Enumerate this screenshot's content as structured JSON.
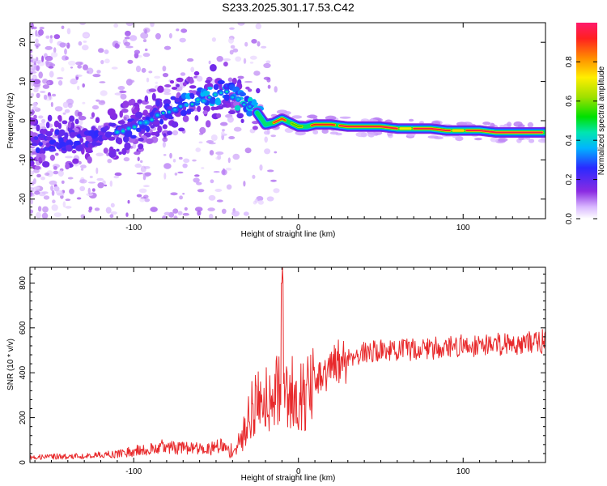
{
  "title": "S233.2025.301.17.53.C42",
  "colors": {
    "snr_line": "#e8292b",
    "axis": "#000000",
    "cband_edge": "#ffffff"
  },
  "chart_data": [
    {
      "type": "heatmap",
      "name": "spectrogram",
      "xlabel": "Height of straight line (km)",
      "ylabel": "Frequency (Hz)",
      "xlim": [
        -163,
        150
      ],
      "ylim": [
        -25,
        25
      ],
      "xticks": [
        -100,
        0,
        100
      ],
      "xtick_labels": [
        "-100",
        "0",
        "100"
      ],
      "yticks": [
        -20,
        -10,
        0,
        10,
        20
      ],
      "ytick_labels": [
        "-20",
        "-10",
        "0",
        "10",
        "20"
      ],
      "ridge": {
        "x": [
          -160,
          -140,
          -120,
          -100,
          -85,
          -70,
          -55,
          -45,
          -40,
          -35,
          -30,
          -25,
          -20,
          -15,
          -10,
          -5,
          0,
          5,
          10,
          20,
          30,
          40,
          50,
          60,
          70,
          80,
          90,
          100,
          110,
          120,
          130,
          140,
          150
        ],
        "y": [
          -6,
          -5,
          -4,
          -2,
          2,
          4,
          6,
          8,
          6,
          5,
          3,
          2,
          -1,
          -0.5,
          0.5,
          -0.5,
          -1.5,
          -1.5,
          -1,
          -1,
          -1.5,
          -1.5,
          -1.5,
          -2,
          -2,
          -2,
          -2.5,
          -2.5,
          -2.5,
          -3,
          -3,
          -3,
          -3
        ]
      },
      "colorbar": {
        "label": "Normalized spectral amplitude",
        "range": [
          0,
          1
        ],
        "ticks": [
          0.0,
          0.2,
          0.4,
          0.6,
          0.8
        ],
        "tick_labels": [
          "0.0",
          "0.2",
          "0.4",
          "0.6",
          "0.8"
        ]
      }
    },
    {
      "type": "line",
      "name": "snr",
      "xlabel": "Height of straight line (km)",
      "ylabel": "SNR (10 * v/v)",
      "xlim": [
        -163,
        150
      ],
      "ylim": [
        0,
        870
      ],
      "xticks": [
        -100,
        0,
        100
      ],
      "xtick_labels": [
        "-100",
        "0",
        "100"
      ],
      "yticks": [
        0,
        200,
        400,
        600,
        800
      ],
      "ytick_labels": [
        "0",
        "200",
        "400",
        "600",
        "800"
      ],
      "series": [
        {
          "name": "SNR",
          "x": [
            -163,
            -150,
            -130,
            -110,
            -95,
            -85,
            -75,
            -65,
            -55,
            -47,
            -42,
            -38,
            -34,
            -30,
            -26,
            -22,
            -18,
            -14,
            -11,
            -10,
            -9,
            -6,
            -2,
            2,
            6,
            10,
            14,
            18,
            22,
            26,
            30,
            40,
            50,
            60,
            70,
            80,
            90,
            100,
            110,
            120,
            130,
            140,
            150
          ],
          "y": [
            25,
            28,
            30,
            40,
            60,
            75,
            70,
            65,
            60,
            80,
            50,
            60,
            110,
            220,
            260,
            280,
            300,
            320,
            330,
            870,
            340,
            300,
            320,
            290,
            320,
            340,
            370,
            400,
            430,
            450,
            470,
            490,
            500,
            500,
            505,
            510,
            515,
            520,
            525,
            530,
            530,
            535,
            540
          ]
        }
      ]
    }
  ]
}
